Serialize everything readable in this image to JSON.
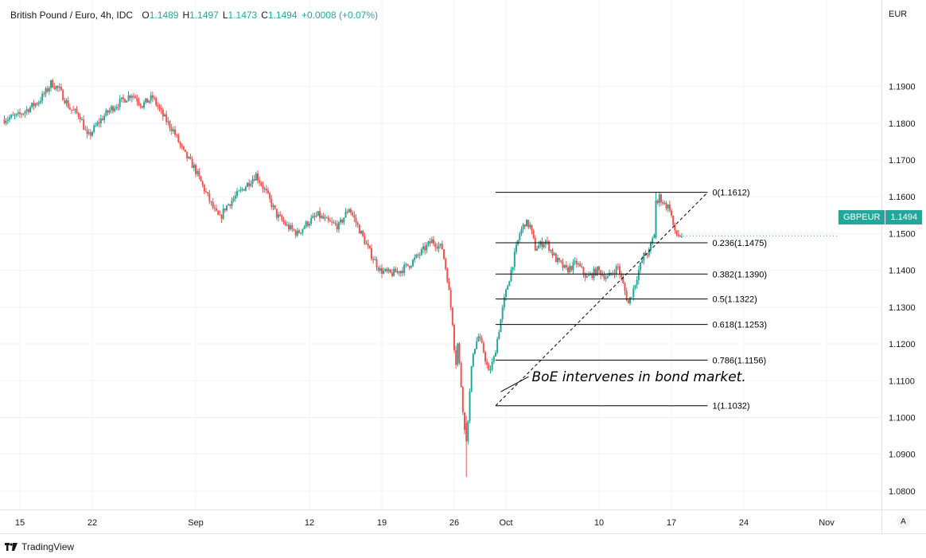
{
  "header": {
    "symbol_title": "British Pound / Euro, 4h, IDC",
    "ohlc": [
      {
        "key": "O",
        "value": "1.1489"
      },
      {
        "key": "H",
        "value": "1.1497"
      },
      {
        "key": "L",
        "value": "1.1473"
      },
      {
        "key": "C",
        "value": "1.1494"
      }
    ],
    "change": "+0.0008 (+0.07%)"
  },
  "axis": {
    "currency": "EUR"
  },
  "price_tag": {
    "symbol": "GBPEUR",
    "value": "1.1494"
  },
  "footer": {
    "brand": "TradingView"
  },
  "auto_button": {
    "label": "A"
  },
  "colors": {
    "up": "#26a69a",
    "down": "#ef5350",
    "grid": "#f0f3fa",
    "text": "#131722"
  },
  "chart_data": {
    "type": "candlestick",
    "ylim": [
      1.075,
      1.2135
    ],
    "yticks": [
      "1.0800",
      "1.0900",
      "1.1000",
      "1.1100",
      "1.1200",
      "1.1300",
      "1.1400",
      "1.1500",
      "1.1600",
      "1.1700",
      "1.1800",
      "1.1900"
    ],
    "xticks": [
      {
        "label": "15",
        "day": 0
      },
      {
        "label": "22",
        "day": 7
      },
      {
        "label": "Sep",
        "day": 17
      },
      {
        "label": "12",
        "day": 28
      },
      {
        "label": "19",
        "day": 35
      },
      {
        "label": "26",
        "day": 42
      },
      {
        "label": "Oct",
        "day": 47
      },
      {
        "label": "10",
        "day": 56
      },
      {
        "label": "17",
        "day": 63
      },
      {
        "label": "24",
        "day": 70
      },
      {
        "label": "Nov",
        "day": 78
      }
    ],
    "price_path": [
      [
        -1.5,
        1.181
      ],
      [
        0,
        1.182
      ],
      [
        1,
        1.184
      ],
      [
        2,
        1.186
      ],
      [
        2.8,
        1.189
      ],
      [
        3.2,
        1.191
      ],
      [
        4,
        1.189
      ],
      [
        5,
        1.184
      ],
      [
        6,
        1.182
      ],
      [
        6.7,
        1.176
      ],
      [
        7.2,
        1.178
      ],
      [
        8,
        1.181
      ],
      [
        9,
        1.184
      ],
      [
        10,
        1.186
      ],
      [
        11,
        1.188
      ],
      [
        12,
        1.185
      ],
      [
        13,
        1.187
      ],
      [
        14,
        1.182
      ],
      [
        15,
        1.178
      ],
      [
        16,
        1.172
      ],
      [
        17,
        1.168
      ],
      [
        18,
        1.162
      ],
      [
        19,
        1.156
      ],
      [
        19.5,
        1.154
      ],
      [
        20,
        1.157
      ],
      [
        21,
        1.16
      ],
      [
        22,
        1.163
      ],
      [
        23,
        1.166
      ],
      [
        24,
        1.161
      ],
      [
        25,
        1.155
      ],
      [
        26,
        1.152
      ],
      [
        27,
        1.15
      ],
      [
        28,
        1.153
      ],
      [
        29,
        1.155
      ],
      [
        30,
        1.153
      ],
      [
        31,
        1.152
      ],
      [
        32,
        1.157
      ],
      [
        33,
        1.151
      ],
      [
        34,
        1.145
      ],
      [
        35,
        1.14
      ],
      [
        36,
        1.139
      ],
      [
        37,
        1.14
      ],
      [
        38,
        1.142
      ],
      [
        39,
        1.145
      ],
      [
        40,
        1.148
      ],
      [
        41,
        1.146
      ],
      [
        41.5,
        1.138
      ],
      [
        42,
        1.126
      ],
      [
        42.3,
        1.114
      ],
      [
        42.5,
        1.12
      ],
      [
        42.8,
        1.11
      ],
      [
        43.2,
        1.095
      ],
      [
        43.5,
        1.1
      ],
      [
        43.8,
        1.112
      ],
      [
        44,
        1.118
      ],
      [
        44.5,
        1.122
      ],
      [
        45,
        1.118
      ],
      [
        45.5,
        1.112
      ],
      [
        46,
        1.116
      ],
      [
        46.5,
        1.124
      ],
      [
        47,
        1.132
      ],
      [
        47.5,
        1.138
      ],
      [
        48,
        1.144
      ],
      [
        48.5,
        1.15
      ],
      [
        49,
        1.153
      ],
      [
        49.5,
        1.152
      ],
      [
        50,
        1.146
      ],
      [
        51,
        1.148
      ],
      [
        52,
        1.143
      ],
      [
        53,
        1.14
      ],
      [
        54,
        1.142
      ],
      [
        55,
        1.138
      ],
      [
        56,
        1.14
      ],
      [
        57,
        1.138
      ],
      [
        58,
        1.141
      ],
      [
        58.5,
        1.136
      ],
      [
        59,
        1.131
      ],
      [
        59.5,
        1.135
      ],
      [
        60,
        1.14
      ],
      [
        60.5,
        1.144
      ],
      [
        61,
        1.145
      ],
      [
        61.5,
        1.15
      ],
      [
        61.8,
        1.158
      ],
      [
        62,
        1.16
      ],
      [
        62.5,
        1.158
      ],
      [
        63,
        1.157
      ],
      [
        63.5,
        1.15
      ],
      [
        64,
        1.1494
      ]
    ],
    "special_candles": [
      {
        "day": 43.2,
        "open": 1.0985,
        "high": 1.1005,
        "low": 1.0838,
        "close": 1.0935
      },
      {
        "day": 61.5,
        "open": 1.149,
        "high": 1.1612,
        "low": 1.1485,
        "close": 1.159
      }
    ],
    "fibonacci": {
      "x_start_day": 46,
      "x_end_day": 66.5,
      "levels": [
        {
          "label": "0(1.1612)",
          "value": 1.1612
        },
        {
          "label": "0.236(1.1475)",
          "value": 1.1475
        },
        {
          "label": "0.382(1.1390)",
          "value": 1.139
        },
        {
          "label": "0.5(1.1322)",
          "value": 1.1322
        },
        {
          "label": "0.618(1.1253)",
          "value": 1.1253
        },
        {
          "label": "0.786(1.1156)",
          "value": 1.1156
        },
        {
          "label": "1(1.1032)",
          "value": 1.1032
        }
      ],
      "trend_line": {
        "from": [
          46,
          1.1032
        ],
        "to": [
          66.5,
          1.1612
        ]
      }
    },
    "annotation": {
      "text": "BoE intervenes in bond market.",
      "anchor_day": 46.5,
      "anchor_price": 1.107,
      "label_day": 49.5,
      "label_price": 1.1098
    }
  }
}
